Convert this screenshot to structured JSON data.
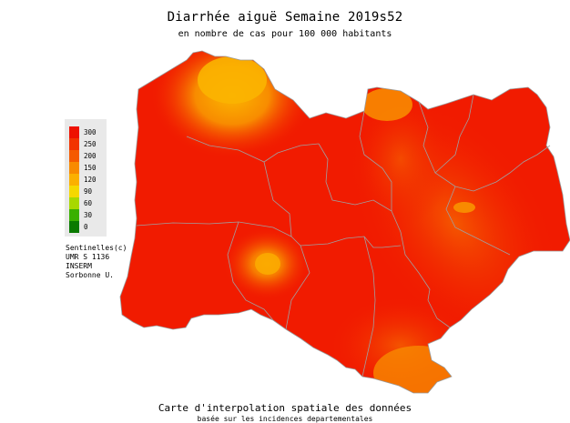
{
  "header": {
    "title": "Diarrhée aiguë Semaine 2019s52",
    "subtitle": "en nombre de cas pour 100 000 habitants"
  },
  "legend": {
    "items": [
      {
        "label": "300",
        "color": "#ee1100"
      },
      {
        "label": "250",
        "color": "#f23300"
      },
      {
        "label": "200",
        "color": "#f55a00"
      },
      {
        "label": "150",
        "color": "#f88a00"
      },
      {
        "label": "120",
        "color": "#fbb000"
      },
      {
        "label": "90",
        "color": "#f5d800"
      },
      {
        "label": "60",
        "color": "#a8d800"
      },
      {
        "label": "30",
        "color": "#3ab000"
      },
      {
        "label": "0",
        "color": "#0a7a00"
      }
    ]
  },
  "credits": {
    "lines": [
      "Sentinelles(c)",
      "UMR S 1136",
      "INSERM",
      "Sorbonne U."
    ]
  },
  "footer": {
    "caption": "Carte d'interpolation spatiale des données",
    "subcaption": "basée sur les incidences departementales"
  },
  "map": {
    "base_color": "#f11b00",
    "hotspot_color": "#fbaa00",
    "mid_color": "#f77000",
    "border_color": "#a0a0a0"
  }
}
